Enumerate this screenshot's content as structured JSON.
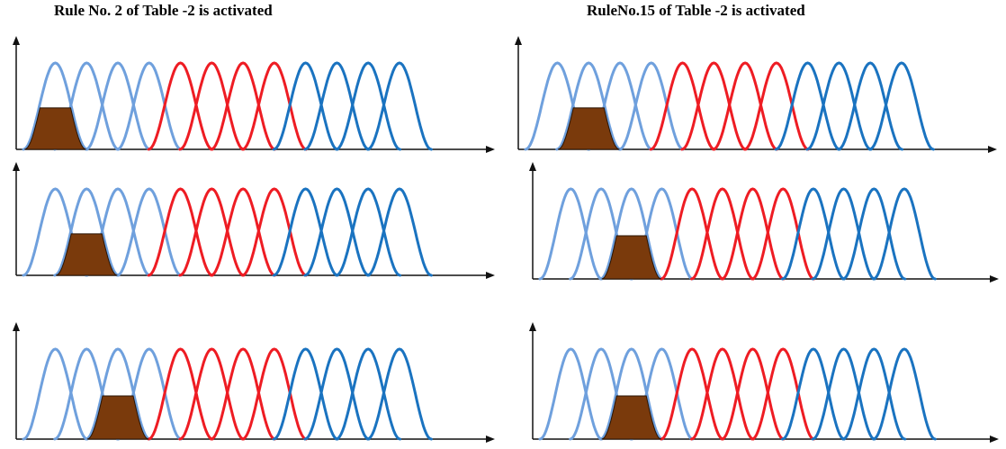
{
  "columns": [
    {
      "title": "Rule No. 2 of Table -2 is activated",
      "panels": [
        {
          "shaded_mf_index": 0
        },
        {
          "shaded_mf_index": 1
        },
        {
          "shaded_mf_index": 2
        }
      ]
    },
    {
      "title": "RuleNo.15 of Table -2 is activated",
      "panels": [
        {
          "shaded_mf_index": 1
        },
        {
          "shaded_mf_index": 2
        },
        {
          "shaded_mf_index": 2
        }
      ]
    }
  ],
  "membership_functions": {
    "count": 12,
    "groups": [
      {
        "count": 4,
        "color": "#6fa0dd"
      },
      {
        "count": 4,
        "color": "#ee1c23"
      },
      {
        "count": 4,
        "color": "#1a73c0"
      }
    ]
  },
  "shaded_region": {
    "color": "#7a3a0c",
    "height_fraction": 0.48
  }
}
